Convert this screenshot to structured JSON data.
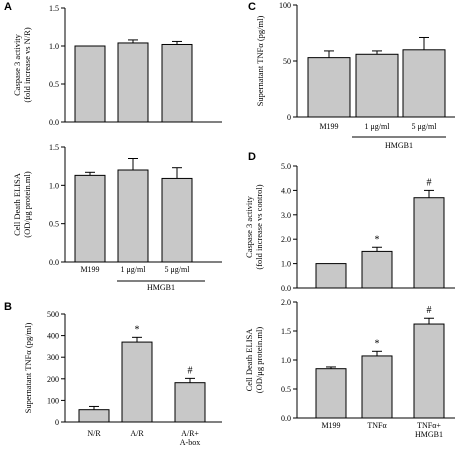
{
  "chart_data": [
    {
      "id": "A1",
      "panel_label": "A",
      "type": "bar",
      "categories": [
        "M199",
        "1 μg/ml",
        "5 μg/ml"
      ],
      "values": [
        1.0,
        1.04,
        1.02
      ],
      "errors": [
        0,
        0.04,
        0.04
      ],
      "ylabel_lines": [
        "Caspase 3 activity",
        "(fold increase vs N/R)"
      ],
      "ylim": [
        0,
        1.5
      ],
      "yticks": [
        "0.0",
        "0.5",
        "1.0",
        "1.5"
      ],
      "show_x_labels": false,
      "annotations": [
        "",
        "",
        ""
      ]
    },
    {
      "id": "A2",
      "panel_label": "",
      "type": "bar",
      "categories": [
        "M199",
        "1 μg/ml",
        "5 μg/ml"
      ],
      "values": [
        1.13,
        1.2,
        1.09
      ],
      "errors": [
        0.04,
        0.15,
        0.14
      ],
      "ylabel_lines": [
        "Cell Death ELISA",
        "(OD/μg protein.ml)"
      ],
      "ylim": [
        0,
        1.5
      ],
      "yticks": [
        "0.0",
        "0.5",
        "1.0",
        "1.5"
      ],
      "show_x_labels": true,
      "group_label": "HMGB1",
      "annotations": [
        "",
        "",
        ""
      ]
    },
    {
      "id": "B",
      "panel_label": "B",
      "type": "bar",
      "categories": [
        "N/R",
        "A/R",
        "A/R+|A-box"
      ],
      "values": [
        57,
        370,
        182
      ],
      "errors": [
        15,
        22,
        20
      ],
      "ylabel_lines": [
        "Supernatant TNFα (pg/ml)"
      ],
      "ylim": [
        0,
        500
      ],
      "yticks": [
        "0",
        "100",
        "200",
        "300",
        "400",
        "500"
      ],
      "show_x_labels": true,
      "annotations": [
        "",
        "*",
        "#"
      ]
    },
    {
      "id": "C",
      "panel_label": "C",
      "type": "bar",
      "categories": [
        "M199",
        "1 μg/ml",
        "5 μg/ml"
      ],
      "values": [
        53,
        56,
        60
      ],
      "errors": [
        6,
        3,
        11
      ],
      "ylabel_lines": [
        "Supernatant TNFα (pg/ml)"
      ],
      "ylim": [
        0,
        100
      ],
      "yticks": [
        "0",
        "50",
        "100"
      ],
      "show_x_labels": true,
      "group_label": "HMGB1",
      "annotations": [
        "",
        "",
        ""
      ]
    },
    {
      "id": "D1",
      "panel_label": "D",
      "type": "bar",
      "categories": [
        "M199",
        "TNFα",
        "TNFα+|HMGB1"
      ],
      "values": [
        1.0,
        1.5,
        3.7
      ],
      "errors": [
        0,
        0.17,
        0.3
      ],
      "ylabel_lines": [
        "Caspase 3 activity",
        "(fold increase vs control)"
      ],
      "ylim": [
        0,
        5.0
      ],
      "yticks": [
        "0.0",
        "1.0",
        "2.0",
        "3.0",
        "4.0",
        "5.0"
      ],
      "show_x_labels": false,
      "annotations": [
        "",
        "*",
        "#"
      ]
    },
    {
      "id": "D2",
      "panel_label": "",
      "type": "bar",
      "categories": [
        "M199",
        "TNFα",
        "TNFα+|HMGB1"
      ],
      "values": [
        0.85,
        1.07,
        1.62
      ],
      "errors": [
        0.03,
        0.08,
        0.1
      ],
      "ylabel_lines": [
        "Cell Death ELISA",
        "(OD/μg protein.ml)"
      ],
      "ylim": [
        0,
        2.0
      ],
      "yticks": [
        "0.0",
        "0.5",
        "1.0",
        "1.5",
        "2.0"
      ],
      "show_x_labels": true,
      "annotations": [
        "",
        "*",
        "#"
      ]
    }
  ],
  "style": {
    "bar_fill": "#c8c8c8",
    "stroke": "#000000"
  }
}
